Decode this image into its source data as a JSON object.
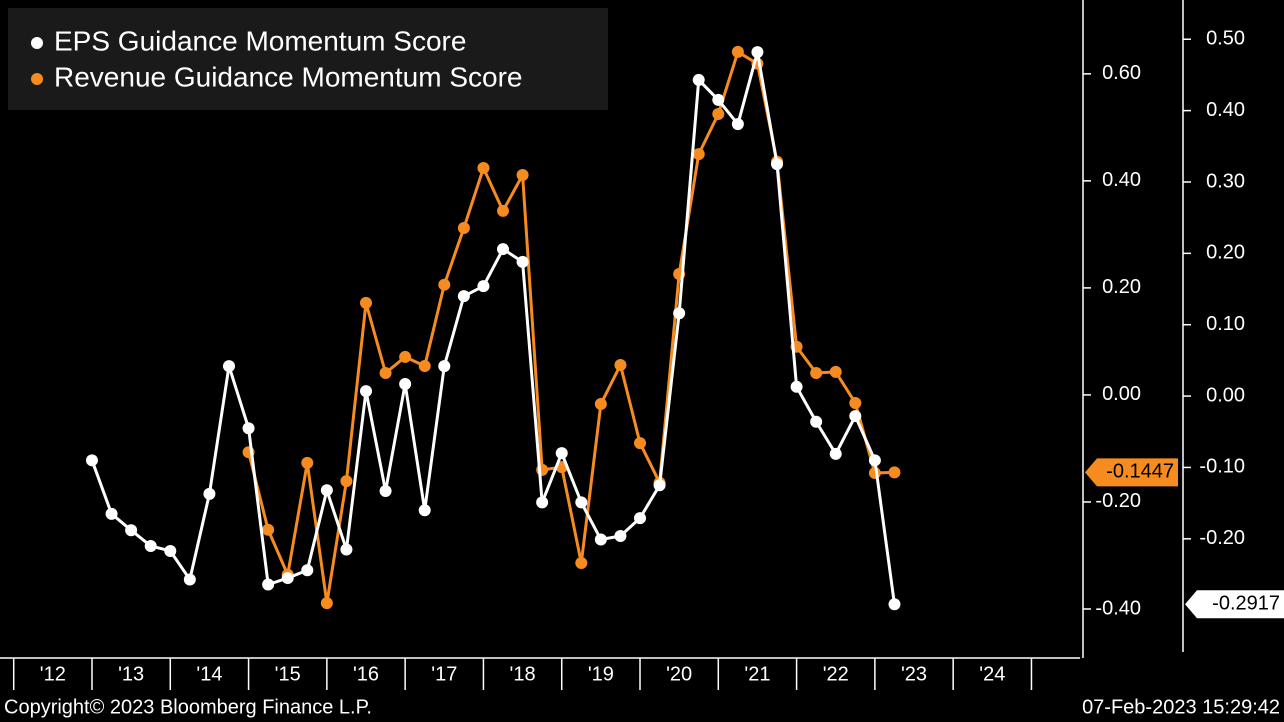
{
  "footer": {
    "copyright": "Copyright© 2023 Bloomberg Finance L.P.",
    "timestamp": "07-Feb-2023 15:29:42"
  },
  "chart_data": {
    "type": "line",
    "x": [
      2013,
      2013.25,
      2013.5,
      2013.75,
      2014,
      2014.25,
      2014.5,
      2014.75,
      2015,
      2015.25,
      2015.5,
      2015.75,
      2016,
      2016.25,
      2016.5,
      2016.75,
      2017,
      2017.25,
      2017.5,
      2017.75,
      2018,
      2018.25,
      2018.5,
      2018.75,
      2019,
      2019.25,
      2019.5,
      2019.75,
      2020,
      2020.25,
      2020.5,
      2020.75,
      2021,
      2021.25,
      2021.5,
      2021.75,
      2022,
      2022.25,
      2022.5,
      2022.75,
      2023,
      2023.25
    ],
    "series": [
      {
        "name": "EPS Guidance Momentum Score",
        "color": "#ffffff",
        "axis": "y2",
        "values": [
          -0.09,
          -0.165,
          -0.188,
          -0.21,
          -0.217,
          -0.257,
          -0.137,
          0.042,
          -0.045,
          -0.264,
          -0.255,
          -0.244,
          -0.132,
          -0.215,
          0.007,
          -0.133,
          0.017,
          -0.16,
          0.042,
          0.14,
          0.154,
          0.206,
          0.188,
          -0.149,
          -0.08,
          -0.149,
          -0.201,
          -0.196,
          -0.171,
          -0.125,
          0.116,
          0.443,
          0.415,
          0.381,
          0.482,
          0.325,
          0.013,
          -0.036,
          -0.081,
          -0.028,
          -0.09,
          -0.2917
        ]
      },
      {
        "name": "Revenue Guidance Momentum Score",
        "color": "#f68b1f",
        "values": [
          null,
          null,
          null,
          null,
          null,
          null,
          null,
          null,
          -0.107,
          -0.252,
          -0.336,
          -0.127,
          -0.389,
          -0.161,
          0.172,
          0.041,
          0.071,
          0.054,
          0.206,
          0.312,
          0.424,
          0.344,
          0.411,
          -0.14,
          -0.135,
          -0.314,
          -0.017,
          0.056,
          -0.09,
          -0.164,
          0.226,
          0.45,
          0.525,
          0.641,
          0.619,
          0.436,
          0.09,
          0.041,
          0.043,
          -0.015,
          -0.146,
          -0.1447
        ]
      }
    ],
    "xlim": [
      2011.825,
      2025.62
    ],
    "xticks": [
      {
        "value": 2012,
        "label": "'12"
      },
      {
        "value": 2013,
        "label": "'13"
      },
      {
        "value": 2014,
        "label": "'14"
      },
      {
        "value": 2015,
        "label": "'15"
      },
      {
        "value": 2016,
        "label": "'16"
      },
      {
        "value": 2017,
        "label": "'17"
      },
      {
        "value": 2018,
        "label": "'18"
      },
      {
        "value": 2019,
        "label": "'19"
      },
      {
        "value": 2020,
        "label": "'20"
      },
      {
        "value": 2021,
        "label": "'21"
      },
      {
        "value": 2022,
        "label": "'22"
      },
      {
        "value": 2023,
        "label": "'23"
      },
      {
        "value": 2024,
        "label": "'24"
      }
    ],
    "ylim": [
      -0.4916,
      0.738
    ],
    "yticks": [
      {
        "value": 0.6,
        "label": "0.60"
      },
      {
        "value": 0.4,
        "label": "0.40"
      },
      {
        "value": 0.2,
        "label": "0.20"
      },
      {
        "value": 0,
        "label": "0.00"
      },
      {
        "value": -0.2,
        "label": "-0.20"
      },
      {
        "value": -0.4,
        "label": "-0.40"
      }
    ],
    "y2lim": [
      -0.367,
      0.555
    ],
    "y2ticks": [
      {
        "value": 0.5,
        "label": "0.50"
      },
      {
        "value": 0.4,
        "label": "0.40"
      },
      {
        "value": 0.3,
        "label": "0.30"
      },
      {
        "value": 0.2,
        "label": "0.20"
      },
      {
        "value": 0.1,
        "label": "0.10"
      },
      {
        "value": 0,
        "label": "0.00"
      },
      {
        "value": -0.1,
        "label": "-0.10"
      },
      {
        "value": -0.2,
        "label": "-0.20"
      }
    ]
  }
}
